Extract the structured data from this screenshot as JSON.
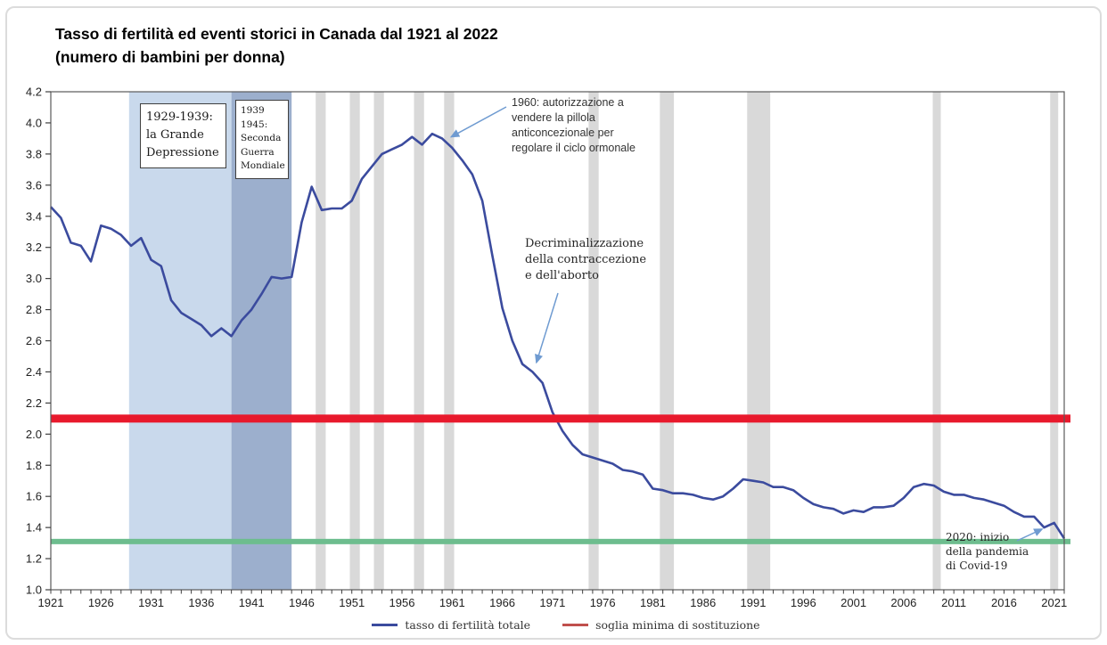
{
  "title": {
    "line1": "Tasso di fertilità ed eventi storici in Canada dal 1921 al 2022",
    "line2": "(numero di bambini per donna)"
  },
  "chart_data": {
    "type": "line",
    "x_start": 1921,
    "x_end": 2022,
    "ylim": [
      1.0,
      4.2
    ],
    "y_tick_step": 0.2,
    "x_tick_years": [
      1921,
      1926,
      1931,
      1936,
      1941,
      1946,
      1951,
      1956,
      1961,
      1966,
      1971,
      1976,
      1981,
      1986,
      1991,
      1996,
      2001,
      2006,
      2011,
      2016,
      2021
    ],
    "series": [
      {
        "name": "tasso di fertilità totale",
        "color": "#3b4b9e",
        "values": [
          3.46,
          3.39,
          3.23,
          3.21,
          3.11,
          3.34,
          3.32,
          3.28,
          3.21,
          3.26,
          3.12,
          3.08,
          2.86,
          2.78,
          2.74,
          2.7,
          2.63,
          2.68,
          2.63,
          2.73,
          2.8,
          2.9,
          3.01,
          3.0,
          3.01,
          3.36,
          3.59,
          3.44,
          3.45,
          3.45,
          3.5,
          3.64,
          3.72,
          3.8,
          3.83,
          3.86,
          3.91,
          3.86,
          3.93,
          3.9,
          3.84,
          3.76,
          3.67,
          3.5,
          3.15,
          2.81,
          2.6,
          2.45,
          2.4,
          2.33,
          2.14,
          2.02,
          1.93,
          1.87,
          1.85,
          1.83,
          1.81,
          1.77,
          1.76,
          1.74,
          1.65,
          1.64,
          1.62,
          1.62,
          1.61,
          1.59,
          1.58,
          1.6,
          1.65,
          1.71,
          1.7,
          1.69,
          1.66,
          1.66,
          1.64,
          1.59,
          1.55,
          1.53,
          1.52,
          1.49,
          1.51,
          1.5,
          1.53,
          1.53,
          1.54,
          1.59,
          1.66,
          1.68,
          1.67,
          1.63,
          1.61,
          1.61,
          1.59,
          1.58,
          1.56,
          1.54,
          1.5,
          1.47,
          1.47,
          1.4,
          1.43,
          1.33
        ]
      }
    ],
    "reference_lines": [
      {
        "name": "soglia minima di sostituzione",
        "value": 2.1,
        "color": "#e8192c",
        "thickness": 9
      },
      {
        "name": "",
        "value": 1.31,
        "color": "#6dbd8e",
        "thickness": 6
      }
    ],
    "event_bands": [
      {
        "from": 1928.8,
        "to": 1939.0,
        "color": "#c9d9ec",
        "label_lines": [
          "1929-1939:",
          "la Grande",
          "Depressione"
        ]
      },
      {
        "from": 1939.0,
        "to": 1945.0,
        "color": "#9cafcd",
        "label_lines": [
          "1939",
          "1945:",
          "Seconda",
          "Guerra",
          "Mondiale"
        ]
      }
    ],
    "recession_bands": [
      [
        1947.4,
        1948.4
      ],
      [
        1950.8,
        1951.8
      ],
      [
        1953.2,
        1954.2
      ],
      [
        1957.2,
        1958.2
      ],
      [
        1960.2,
        1961.2
      ],
      [
        1974.6,
        1975.6
      ],
      [
        1981.7,
        1983.1
      ],
      [
        1990.4,
        1992.7
      ],
      [
        2008.9,
        2009.7
      ],
      [
        2020.6,
        2021.4
      ]
    ],
    "recession_color": "#d9d9d9",
    "annotations": [
      {
        "id": "pill",
        "lines": [
          "1960: autorizzazione a",
          "vendere la pillola",
          "anticoncezionale per",
          "regolare il ciclo ormonale"
        ],
        "target_year": 1960.9,
        "target_value": 3.91
      },
      {
        "id": "decrim",
        "lines": [
          "Decriminalizzazione",
          "della contraccezione",
          "e dell'aborto"
        ],
        "target_year": 1969.4,
        "target_value": 2.46
      },
      {
        "id": "covid",
        "lines": [
          "2020: inizio",
          "della pandemia",
          "di Covid-19"
        ],
        "target_year": 2019.8,
        "target_value": 1.39
      }
    ],
    "arrow_color": "#6f9bd1",
    "legend": [
      {
        "label": "tasso di fertilità totale",
        "color": "#3b4b9e"
      },
      {
        "label": "soglia minima di sostituzione",
        "color": "#c0504d"
      }
    ]
  }
}
